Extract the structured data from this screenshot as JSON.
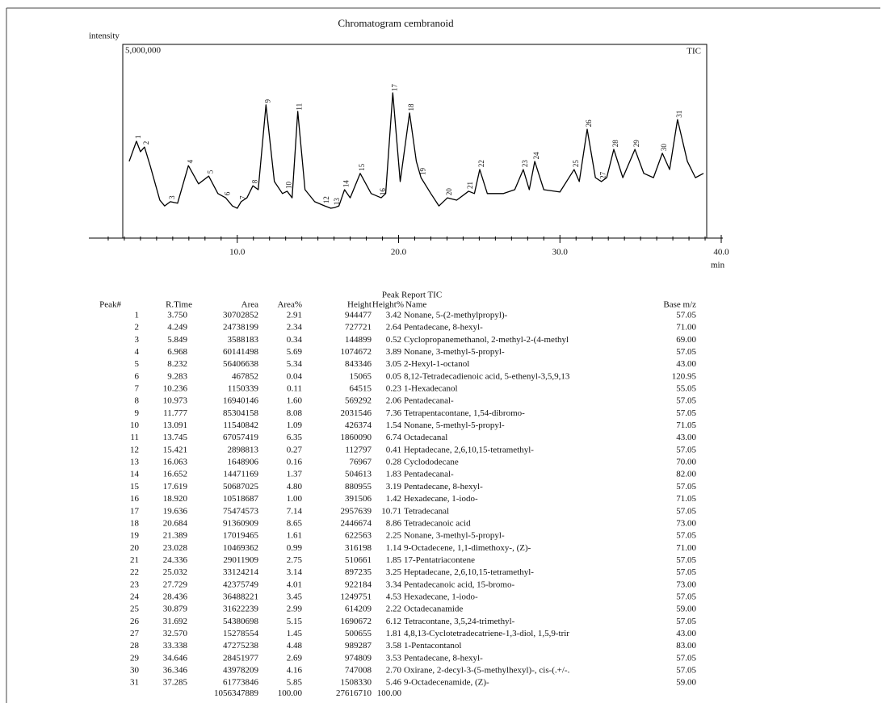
{
  "chart_data": {
    "type": "line",
    "title": "Chromatogram cembranoid",
    "y_label": "intensity",
    "x_label": "min",
    "series_label": "TIC",
    "xlim": [
      0.8,
      40.1
    ],
    "ylim": [
      0,
      5000000
    ],
    "xticks": [
      {
        "value": 10,
        "label": "10.0"
      },
      {
        "value": 20,
        "label": "20.0"
      },
      {
        "value": 30,
        "label": "30.0"
      },
      {
        "value": 40,
        "label": "40.0"
      }
    ],
    "xminorticks": [
      2,
      3,
      4,
      5,
      6,
      7,
      8,
      9,
      11,
      12,
      13,
      14,
      15,
      16,
      17,
      18,
      19,
      21,
      22,
      23,
      24,
      25,
      26,
      27,
      28,
      29,
      31,
      32,
      33,
      34,
      35,
      36,
      37,
      38,
      39
    ],
    "yticks": [
      {
        "value": 5000000,
        "label": "5,000,000"
      }
    ],
    "color": "#000000",
    "x": [
      3.3,
      3.75,
      4.0,
      4.25,
      4.6,
      5.2,
      5.5,
      5.85,
      6.3,
      6.97,
      7.6,
      8.23,
      8.8,
      9.28,
      9.7,
      10.0,
      10.24,
      10.6,
      10.97,
      11.3,
      11.78,
      12.3,
      12.8,
      13.09,
      13.4,
      13.75,
      14.2,
      14.8,
      15.42,
      15.8,
      16.06,
      16.3,
      16.65,
      17.0,
      17.62,
      18.3,
      18.92,
      19.2,
      19.64,
      20.1,
      20.68,
      21.1,
      21.39,
      22.0,
      22.5,
      23.03,
      23.6,
      24.34,
      24.7,
      25.03,
      25.5,
      26.5,
      27.2,
      27.73,
      28.1,
      28.44,
      29.0,
      30.0,
      30.88,
      31.2,
      31.69,
      32.2,
      32.57,
      32.9,
      33.34,
      33.9,
      34.65,
      35.2,
      35.8,
      36.35,
      36.8,
      37.29,
      37.9,
      38.4,
      38.9
    ],
    "values": [
      1980000,
      2500000,
      2230000,
      2350000,
      1870000,
      980000,
      830000,
      940000,
      900000,
      1870000,
      1400000,
      1600000,
      1150000,
      1040000,
      830000,
      770000,
      940000,
      1040000,
      1350000,
      1250000,
      3440000,
      1460000,
      1150000,
      1210000,
      1040000,
      3270000,
      1250000,
      940000,
      830000,
      770000,
      790000,
      830000,
      1250000,
      1040000,
      1670000,
      1150000,
      1040000,
      1150000,
      3750000,
      1460000,
      3230000,
      1980000,
      1560000,
      1150000,
      830000,
      1040000,
      980000,
      1210000,
      1150000,
      1770000,
      1150000,
      1150000,
      1250000,
      1770000,
      1250000,
      1980000,
      1250000,
      1190000,
      1770000,
      1460000,
      2810000,
      1560000,
      1460000,
      1560000,
      2290000,
      1560000,
      2290000,
      1670000,
      1560000,
      2190000,
      1770000,
      3060000,
      1980000,
      1560000,
      1670000
    ],
    "peak_labels": {
      "x": [
        3.75,
        4.249,
        5.849,
        6.968,
        8.232,
        9.283,
        10.236,
        10.973,
        11.777,
        13.091,
        13.745,
        15.421,
        16.063,
        16.652,
        17.619,
        18.92,
        19.636,
        20.684,
        21.389,
        23.028,
        24.336,
        25.032,
        27.729,
        28.436,
        30.879,
        31.692,
        32.57,
        33.338,
        34.646,
        36.346,
        37.285
      ],
      "text": [
        "1",
        "2",
        "3",
        "4",
        "5",
        "6",
        "7",
        "8",
        "9",
        "10",
        "11",
        "12",
        "13",
        "14",
        "15",
        "16",
        "17",
        "18",
        "19",
        "20",
        "21",
        "22",
        "23",
        "24",
        "25",
        "26",
        "27",
        "28",
        "29",
        "30",
        "31"
      ]
    }
  },
  "table": {
    "title": "Peak Report TIC",
    "columns": [
      "Peak#",
      "R.Time",
      "Area",
      "Area%",
      "Height",
      "Height%",
      "Name",
      "Base m/z"
    ],
    "rows": [
      [
        "1",
        "3.750",
        "30702852",
        "2.91",
        "944477",
        "3.42",
        "Nonane, 5-(2-methylpropyl)-",
        "57.05"
      ],
      [
        "2",
        "4.249",
        "24738199",
        "2.34",
        "727721",
        "2.64",
        "Pentadecane, 8-hexyl-",
        "71.00"
      ],
      [
        "3",
        "5.849",
        "3588183",
        "0.34",
        "144899",
        "0.52",
        "Cyclopropanemethanol, 2-methyl-2-(4-methyl",
        "69.00"
      ],
      [
        "4",
        "6.968",
        "60141498",
        "5.69",
        "1074672",
        "3.89",
        "Nonane, 3-methyl-5-propyl-",
        "57.05"
      ],
      [
        "5",
        "8.232",
        "56406638",
        "5.34",
        "843346",
        "3.05",
        "2-Hexyl-1-octanol",
        "43.00"
      ],
      [
        "6",
        "9.283",
        "467852",
        "0.04",
        "15065",
        "0.05",
        "8,12-Tetradecadienoic acid, 5-ethenyl-3,5,9,13",
        "120.95"
      ],
      [
        "7",
        "10.236",
        "1150339",
        "0.11",
        "64515",
        "0.23",
        "1-Hexadecanol",
        "55.05"
      ],
      [
        "8",
        "10.973",
        "16940146",
        "1.60",
        "569292",
        "2.06",
        "Pentadecanal-",
        "57.05"
      ],
      [
        "9",
        "11.777",
        "85304158",
        "8.08",
        "2031546",
        "7.36",
        "Tetrapentacontane, 1,54-dibromo-",
        "57.05"
      ],
      [
        "10",
        "13.091",
        "11540842",
        "1.09",
        "426374",
        "1.54",
        "Nonane, 5-methyl-5-propyl-",
        "71.05"
      ],
      [
        "11",
        "13.745",
        "67057419",
        "6.35",
        "1860090",
        "6.74",
        "Octadecanal",
        "43.00"
      ],
      [
        "12",
        "15.421",
        "2898813",
        "0.27",
        "112797",
        "0.41",
        "Heptadecane, 2,6,10,15-tetramethyl-",
        "57.05"
      ],
      [
        "13",
        "16.063",
        "1648906",
        "0.16",
        "76967",
        "0.28",
        "Cyclododecane",
        "70.00"
      ],
      [
        "14",
        "16.652",
        "14471169",
        "1.37",
        "504613",
        "1.83",
        "Pentadecanal-",
        "82.00"
      ],
      [
        "15",
        "17.619",
        "50687025",
        "4.80",
        "880955",
        "3.19",
        "Pentadecane, 8-hexyl-",
        "57.05"
      ],
      [
        "16",
        "18.920",
        "10518687",
        "1.00",
        "391506",
        "1.42",
        "Hexadecane, 1-iodo-",
        "71.05"
      ],
      [
        "17",
        "19.636",
        "75474573",
        "7.14",
        "2957639",
        "10.71",
        "Tetradecanal",
        "57.05"
      ],
      [
        "18",
        "20.684",
        "91360909",
        "8.65",
        "2446674",
        "8.86",
        "Tetradecanoic acid",
        "73.00"
      ],
      [
        "19",
        "21.389",
        "17019465",
        "1.61",
        "622563",
        "2.25",
        "Nonane, 3-methyl-5-propyl-",
        "57.05"
      ],
      [
        "20",
        "23.028",
        "10469362",
        "0.99",
        "316198",
        "1.14",
        "9-Octadecene, 1,1-dimethoxy-, (Z)-",
        "71.00"
      ],
      [
        "21",
        "24.336",
        "29011909",
        "2.75",
        "510661",
        "1.85",
        "17-Pentatriacontene",
        "57.05"
      ],
      [
        "22",
        "25.032",
        "33124214",
        "3.14",
        "897235",
        "3.25",
        "Heptadecane, 2,6,10,15-tetramethyl-",
        "57.05"
      ],
      [
        "23",
        "27.729",
        "42375749",
        "4.01",
        "922184",
        "3.34",
        "Pentadecanoic acid, 15-bromo-",
        "73.00"
      ],
      [
        "24",
        "28.436",
        "36488221",
        "3.45",
        "1249751",
        "4.53",
        "Hexadecane, 1-iodo-",
        "57.05"
      ],
      [
        "25",
        "30.879",
        "31622239",
        "2.99",
        "614209",
        "2.22",
        "Octadecanamide",
        "59.00"
      ],
      [
        "26",
        "31.692",
        "54380698",
        "5.15",
        "1690672",
        "6.12",
        "Tetracontane, 3,5,24-trimethyl-",
        "57.05"
      ],
      [
        "27",
        "32.570",
        "15278554",
        "1.45",
        "500655",
        "1.81",
        "4,8,13-Cyclotetradecatriene-1,3-diol, 1,5,9-trir",
        "43.00"
      ],
      [
        "28",
        "33.338",
        "47275238",
        "4.48",
        "989287",
        "3.58",
        "1-Pentacontanol",
        "83.00"
      ],
      [
        "29",
        "34.646",
        "28451977",
        "2.69",
        "974809",
        "3.53",
        "Pentadecane, 8-hexyl-",
        "57.05"
      ],
      [
        "30",
        "36.346",
        "43978209",
        "4.16",
        "747008",
        "2.70",
        "Oxirane, 2-decyl-3-(5-methylhexyl)-, cis-(.+/-.",
        "57.05"
      ],
      [
        "31",
        "37.285",
        "61773846",
        "5.85",
        "1508330",
        "5.46",
        "9-Octadecenamide, (Z)-",
        "59.00"
      ]
    ],
    "totals": [
      "1056347889",
      "100.00",
      "27616710",
      "100.00"
    ]
  }
}
